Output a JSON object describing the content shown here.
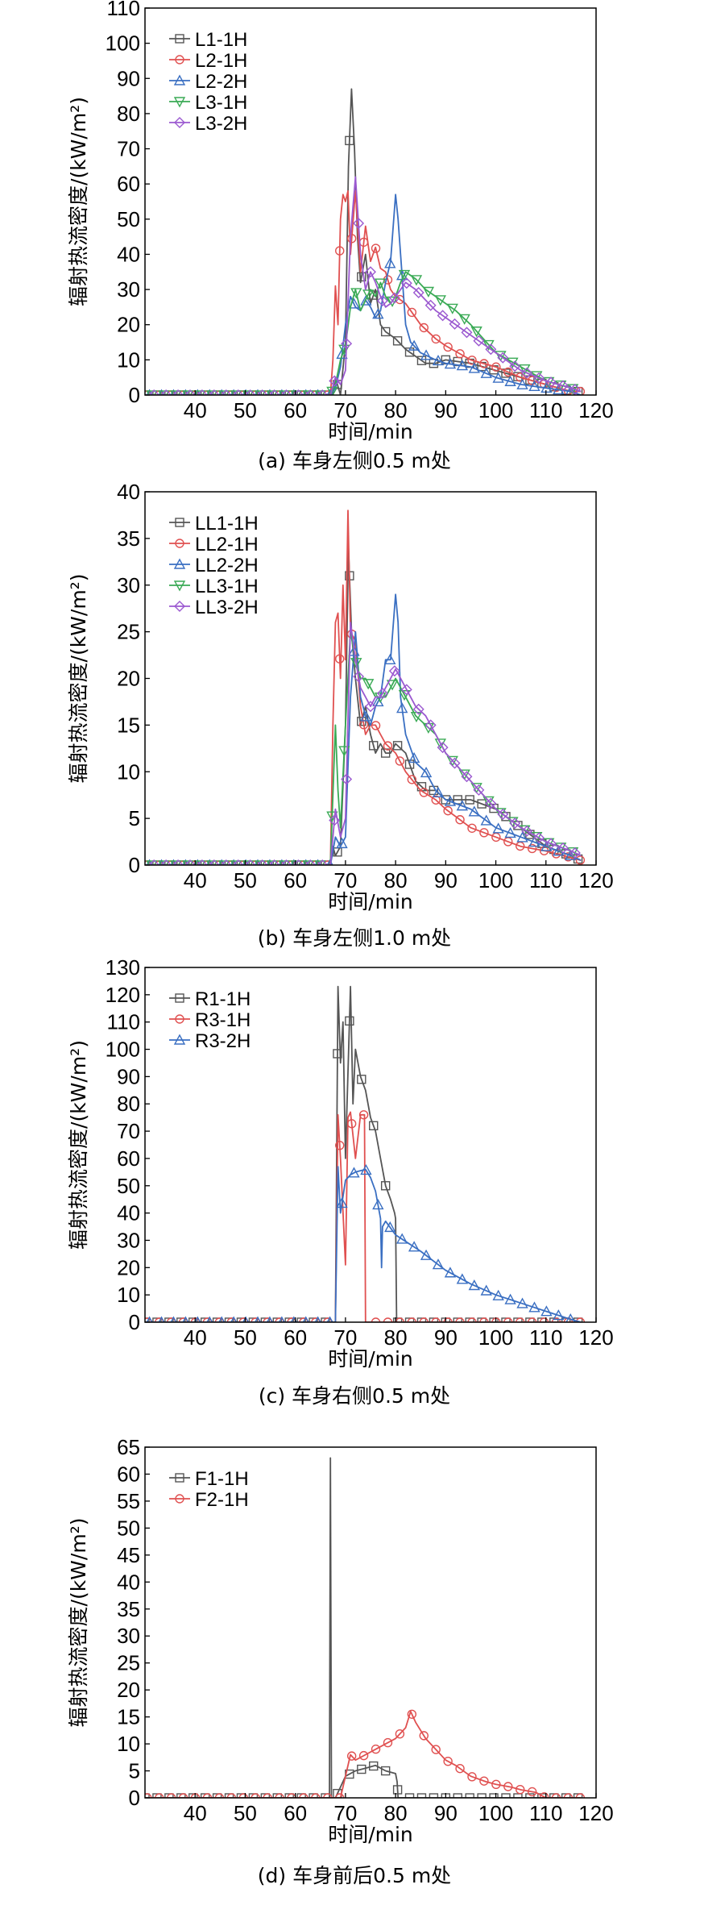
{
  "chart_data": [
    {
      "type": "line",
      "caption": "(a) 车身左侧0.5 m处",
      "xlabel": "时间/min",
      "ylabel": "辐射热流密度/(kW/m²)",
      "xlim": [
        30,
        120
      ],
      "ylim": [
        0,
        110
      ],
      "xticks": [
        40,
        50,
        60,
        70,
        80,
        90,
        100,
        110,
        120
      ],
      "yticks": [
        0,
        10,
        20,
        30,
        40,
        50,
        60,
        70,
        80,
        90,
        100,
        110
      ],
      "legend_position": "top-left",
      "series": [
        {
          "name": "L1-1H",
          "color": "#555555",
          "marker": "square",
          "x": [
            30,
            67,
            67.5,
            68,
            69,
            70,
            70.6,
            71.2,
            71.8,
            72.4,
            73,
            74,
            75,
            76,
            77,
            78,
            79,
            80,
            82,
            84,
            86,
            88,
            90,
            95,
            100,
            105,
            110,
            115,
            117
          ],
          "y": [
            0,
            0,
            0,
            5,
            0,
            15,
            65,
            87,
            70,
            45,
            32,
            40,
            26,
            30,
            20,
            18,
            17,
            16,
            13,
            11,
            9,
            9,
            10,
            9,
            7,
            5,
            3,
            1,
            1
          ]
        },
        {
          "name": "L2-1H",
          "color": "#e05050",
          "marker": "circle",
          "x": [
            30,
            67,
            67.5,
            68,
            68.5,
            69,
            69.5,
            70,
            70.5,
            71,
            72,
            73,
            74,
            75,
            76,
            77,
            78,
            79,
            80,
            82,
            85,
            88,
            90,
            95,
            100,
            105,
            110,
            115,
            117
          ],
          "y": [
            0,
            0,
            10,
            31,
            20,
            50,
            57,
            55,
            58,
            40,
            58,
            35,
            48,
            38,
            42,
            36,
            35,
            30,
            28,
            26,
            20,
            16,
            14,
            10,
            8,
            5,
            3,
            1,
            1
          ]
        },
        {
          "name": "L2-2H",
          "color": "#3a6fc2",
          "marker": "triangle-up",
          "x": [
            30,
            67,
            68,
            69,
            70,
            71,
            72,
            73,
            74,
            75,
            76,
            77,
            78,
            79,
            80,
            80.5,
            81,
            82,
            83,
            85,
            88,
            90,
            95,
            100,
            105,
            110,
            115,
            117
          ],
          "y": [
            0,
            0,
            2,
            8,
            20,
            28,
            25,
            24,
            27,
            25,
            22,
            24,
            32,
            38,
            57,
            50,
            40,
            20,
            15,
            12,
            10,
            9,
            8,
            5,
            3,
            2,
            1,
            0
          ]
        },
        {
          "name": "L3-1H",
          "color": "#3aaa55",
          "marker": "triangle-down",
          "x": [
            30,
            67,
            68,
            69,
            70,
            71,
            72,
            73,
            74,
            75,
            76,
            77,
            78,
            79,
            80,
            81,
            82,
            84,
            86,
            88,
            90,
            92,
            95,
            100,
            105,
            110,
            115,
            117
          ],
          "y": [
            0,
            0,
            3,
            10,
            14,
            25,
            30,
            24,
            27,
            30,
            28,
            32,
            28,
            26,
            28,
            32,
            35,
            33,
            30,
            28,
            26,
            24,
            20,
            12,
            8,
            4,
            2,
            1
          ]
        },
        {
          "name": "L3-2H",
          "color": "#9b59d0",
          "marker": "diamond",
          "x": [
            30,
            67,
            68,
            69,
            70,
            71,
            72,
            73,
            74,
            75,
            76,
            77,
            78,
            79,
            80,
            81,
            82,
            84,
            86,
            88,
            90,
            95,
            100,
            105,
            110,
            115,
            117
          ],
          "y": [
            0,
            0,
            5,
            3,
            7,
            45,
            62,
            40,
            30,
            35,
            32,
            28,
            25,
            26,
            28,
            30,
            32,
            30,
            27,
            24,
            22,
            17,
            12,
            7,
            4,
            2,
            1
          ]
        }
      ]
    },
    {
      "type": "line",
      "caption": "(b) 车身左侧1.0 m处",
      "xlabel": "时间/min",
      "ylabel": "辐射热流密度/(kW/m²)",
      "xlim": [
        30,
        120
      ],
      "ylim": [
        0,
        40
      ],
      "xticks": [
        40,
        50,
        60,
        70,
        80,
        90,
        100,
        110,
        120
      ],
      "yticks": [
        0,
        5,
        10,
        15,
        20,
        25,
        30,
        35,
        40
      ],
      "legend_position": "top-left",
      "series": [
        {
          "name": "LL1-1H",
          "color": "#555555",
          "marker": "square",
          "x": [
            30,
            67,
            67.5,
            68,
            69,
            70,
            70.6,
            71.2,
            72,
            73,
            74,
            75,
            76,
            77,
            78,
            79,
            80,
            82,
            84,
            86,
            88,
            90,
            95,
            100,
            105,
            110,
            115,
            117
          ],
          "y": [
            0,
            0,
            2,
            1,
            2,
            15,
            34,
            25,
            20,
            15,
            17,
            14,
            12,
            13,
            12,
            12,
            13,
            12,
            9,
            8,
            8,
            7,
            7,
            6,
            4,
            2,
            1,
            0.5
          ]
        },
        {
          "name": "LL2-1H",
          "color": "#e05050",
          "marker": "circle",
          "x": [
            30,
            67,
            67.5,
            68,
            68.5,
            69,
            69.5,
            70,
            70.5,
            71,
            72,
            73,
            74,
            75,
            76,
            77,
            78,
            80,
            82,
            85,
            88,
            90,
            95,
            100,
            105,
            110,
            115,
            117
          ],
          "y": [
            0,
            0,
            15,
            26,
            27,
            20,
            30,
            22,
            38,
            25,
            24,
            17,
            14,
            15,
            15,
            14,
            13,
            12,
            10,
            8,
            7,
            6,
            4,
            3,
            2,
            1.5,
            0.8,
            0.5
          ]
        },
        {
          "name": "LL2-2H",
          "color": "#3a6fc2",
          "marker": "triangle-up",
          "x": [
            30,
            67,
            68,
            69,
            70,
            71,
            72,
            73,
            74,
            75,
            76,
            77,
            78,
            79,
            80,
            80.5,
            81,
            82,
            84,
            86,
            88,
            90,
            95,
            100,
            105,
            110,
            115,
            117
          ],
          "y": [
            0,
            0,
            3,
            2,
            3,
            18,
            25,
            18,
            16,
            15,
            17,
            18,
            22,
            22,
            29,
            26,
            18,
            14,
            11,
            10,
            8,
            7,
            6,
            4,
            3,
            2,
            1,
            0.5
          ]
        },
        {
          "name": "LL3-1H",
          "color": "#3aaa55",
          "marker": "triangle-down",
          "x": [
            30,
            67,
            68,
            68.5,
            69,
            70,
            71,
            72,
            73,
            74,
            75,
            76,
            77,
            78,
            79,
            80,
            82,
            84,
            86,
            88,
            90,
            95,
            100,
            105,
            110,
            115,
            117
          ],
          "y": [
            0,
            0,
            15,
            8,
            4,
            15,
            25,
            22,
            20,
            20,
            19,
            18,
            18,
            18,
            19,
            20,
            18,
            16,
            15,
            14,
            12,
            9,
            6,
            4,
            2.5,
            1.5,
            1
          ]
        },
        {
          "name": "LL3-2H",
          "color": "#9b59d0",
          "marker": "diamond",
          "x": [
            30,
            67,
            68,
            69,
            70,
            71,
            72,
            73,
            74,
            75,
            76,
            77,
            78,
            79,
            80,
            82,
            84,
            86,
            88,
            90,
            95,
            100,
            105,
            110,
            115,
            117
          ],
          "y": [
            0,
            0,
            6,
            3,
            5,
            26,
            22,
            19,
            18,
            17,
            18,
            18,
            19,
            20,
            21,
            19,
            17,
            16,
            14,
            12,
            9,
            6,
            4,
            2.5,
            1.5,
            1
          ]
        }
      ]
    },
    {
      "type": "line",
      "caption": "(c) 车身右侧0.5 m处",
      "xlabel": "时间/min",
      "ylabel": "辐射热流密度/(kW/m²)",
      "xlim": [
        30,
        120
      ],
      "ylim": [
        0,
        130
      ],
      "xticks": [
        40,
        50,
        60,
        70,
        80,
        90,
        100,
        110,
        120
      ],
      "yticks": [
        0,
        10,
        20,
        30,
        40,
        50,
        60,
        70,
        80,
        90,
        100,
        110,
        120,
        130
      ],
      "legend_position": "top-left",
      "series": [
        {
          "name": "R1-1H",
          "color": "#555555",
          "marker": "square",
          "x": [
            30,
            68,
            68.5,
            69,
            69.5,
            70,
            71,
            71.5,
            72,
            73,
            74,
            75,
            76,
            77,
            78,
            79,
            79.8,
            80,
            80.2,
            90,
            100,
            110,
            117
          ],
          "y": [
            0,
            0,
            123,
            95,
            110,
            60,
            123,
            80,
            100,
            90,
            85,
            75,
            70,
            60,
            50,
            45,
            40,
            38,
            0,
            0,
            0,
            0,
            0
          ]
        },
        {
          "name": "R3-1H",
          "color": "#e05050",
          "marker": "circle",
          "x": [
            30,
            68,
            68.5,
            69,
            70,
            70.5,
            71,
            72,
            73,
            73.8,
            74,
            74.2,
            80,
            90,
            100,
            110,
            117
          ],
          "y": [
            0,
            0,
            76,
            60,
            21,
            75,
            77,
            60,
            76,
            76,
            0,
            0,
            0,
            0,
            0,
            0,
            0
          ]
        },
        {
          "name": "R3-2H",
          "color": "#3a6fc2",
          "marker": "triangle-up",
          "x": [
            30,
            68,
            68.5,
            69,
            70,
            71,
            72,
            74,
            75,
            76,
            77,
            77.2,
            77.4,
            78,
            80,
            85,
            90,
            95,
            100,
            105,
            110,
            115,
            117
          ],
          "y": [
            0,
            0,
            57,
            40,
            52,
            54,
            55,
            56,
            53,
            48,
            38,
            20,
            35,
            37,
            32,
            26,
            19,
            14,
            10,
            7,
            4,
            1,
            0
          ]
        }
      ]
    },
    {
      "type": "line",
      "caption": "(d) 车身前后0.5 m处",
      "xlabel": "时间/min",
      "ylabel": "辐射热流密度/(kW/m²)",
      "xlim": [
        30,
        120
      ],
      "ylim": [
        0,
        65
      ],
      "xticks": [
        40,
        50,
        60,
        70,
        80,
        90,
        100,
        110,
        120
      ],
      "yticks": [
        0,
        5,
        10,
        15,
        20,
        25,
        30,
        35,
        40,
        45,
        50,
        55,
        60,
        65
      ],
      "legend_position": "top-left",
      "series": [
        {
          "name": "F1-1H",
          "color": "#555555",
          "marker": "square",
          "x": [
            30,
            66.8,
            67,
            67.2,
            67.5,
            68,
            69,
            70,
            72,
            74,
            76,
            78,
            80,
            80.3,
            80.5,
            90,
            100,
            110,
            117
          ],
          "y": [
            0,
            0,
            63,
            0,
            0,
            0,
            2,
            4,
            5,
            5.5,
            6,
            5,
            4.5,
            3,
            0,
            0,
            0,
            0,
            0
          ]
        },
        {
          "name": "F2-1H",
          "color": "#e05050",
          "marker": "circle",
          "x": [
            30,
            69,
            70,
            71,
            72,
            74,
            76,
            78,
            80,
            82,
            83,
            84,
            86,
            88,
            90,
            92,
            95,
            98,
            100,
            103,
            105,
            108,
            110,
            112,
            117
          ],
          "y": [
            0,
            0,
            4,
            8,
            7,
            8,
            9,
            10,
            11,
            13,
            16,
            14,
            11,
            9,
            7,
            6,
            4,
            3,
            2.5,
            2,
            1.5,
            1,
            0,
            0,
            0
          ]
        }
      ]
    }
  ]
}
